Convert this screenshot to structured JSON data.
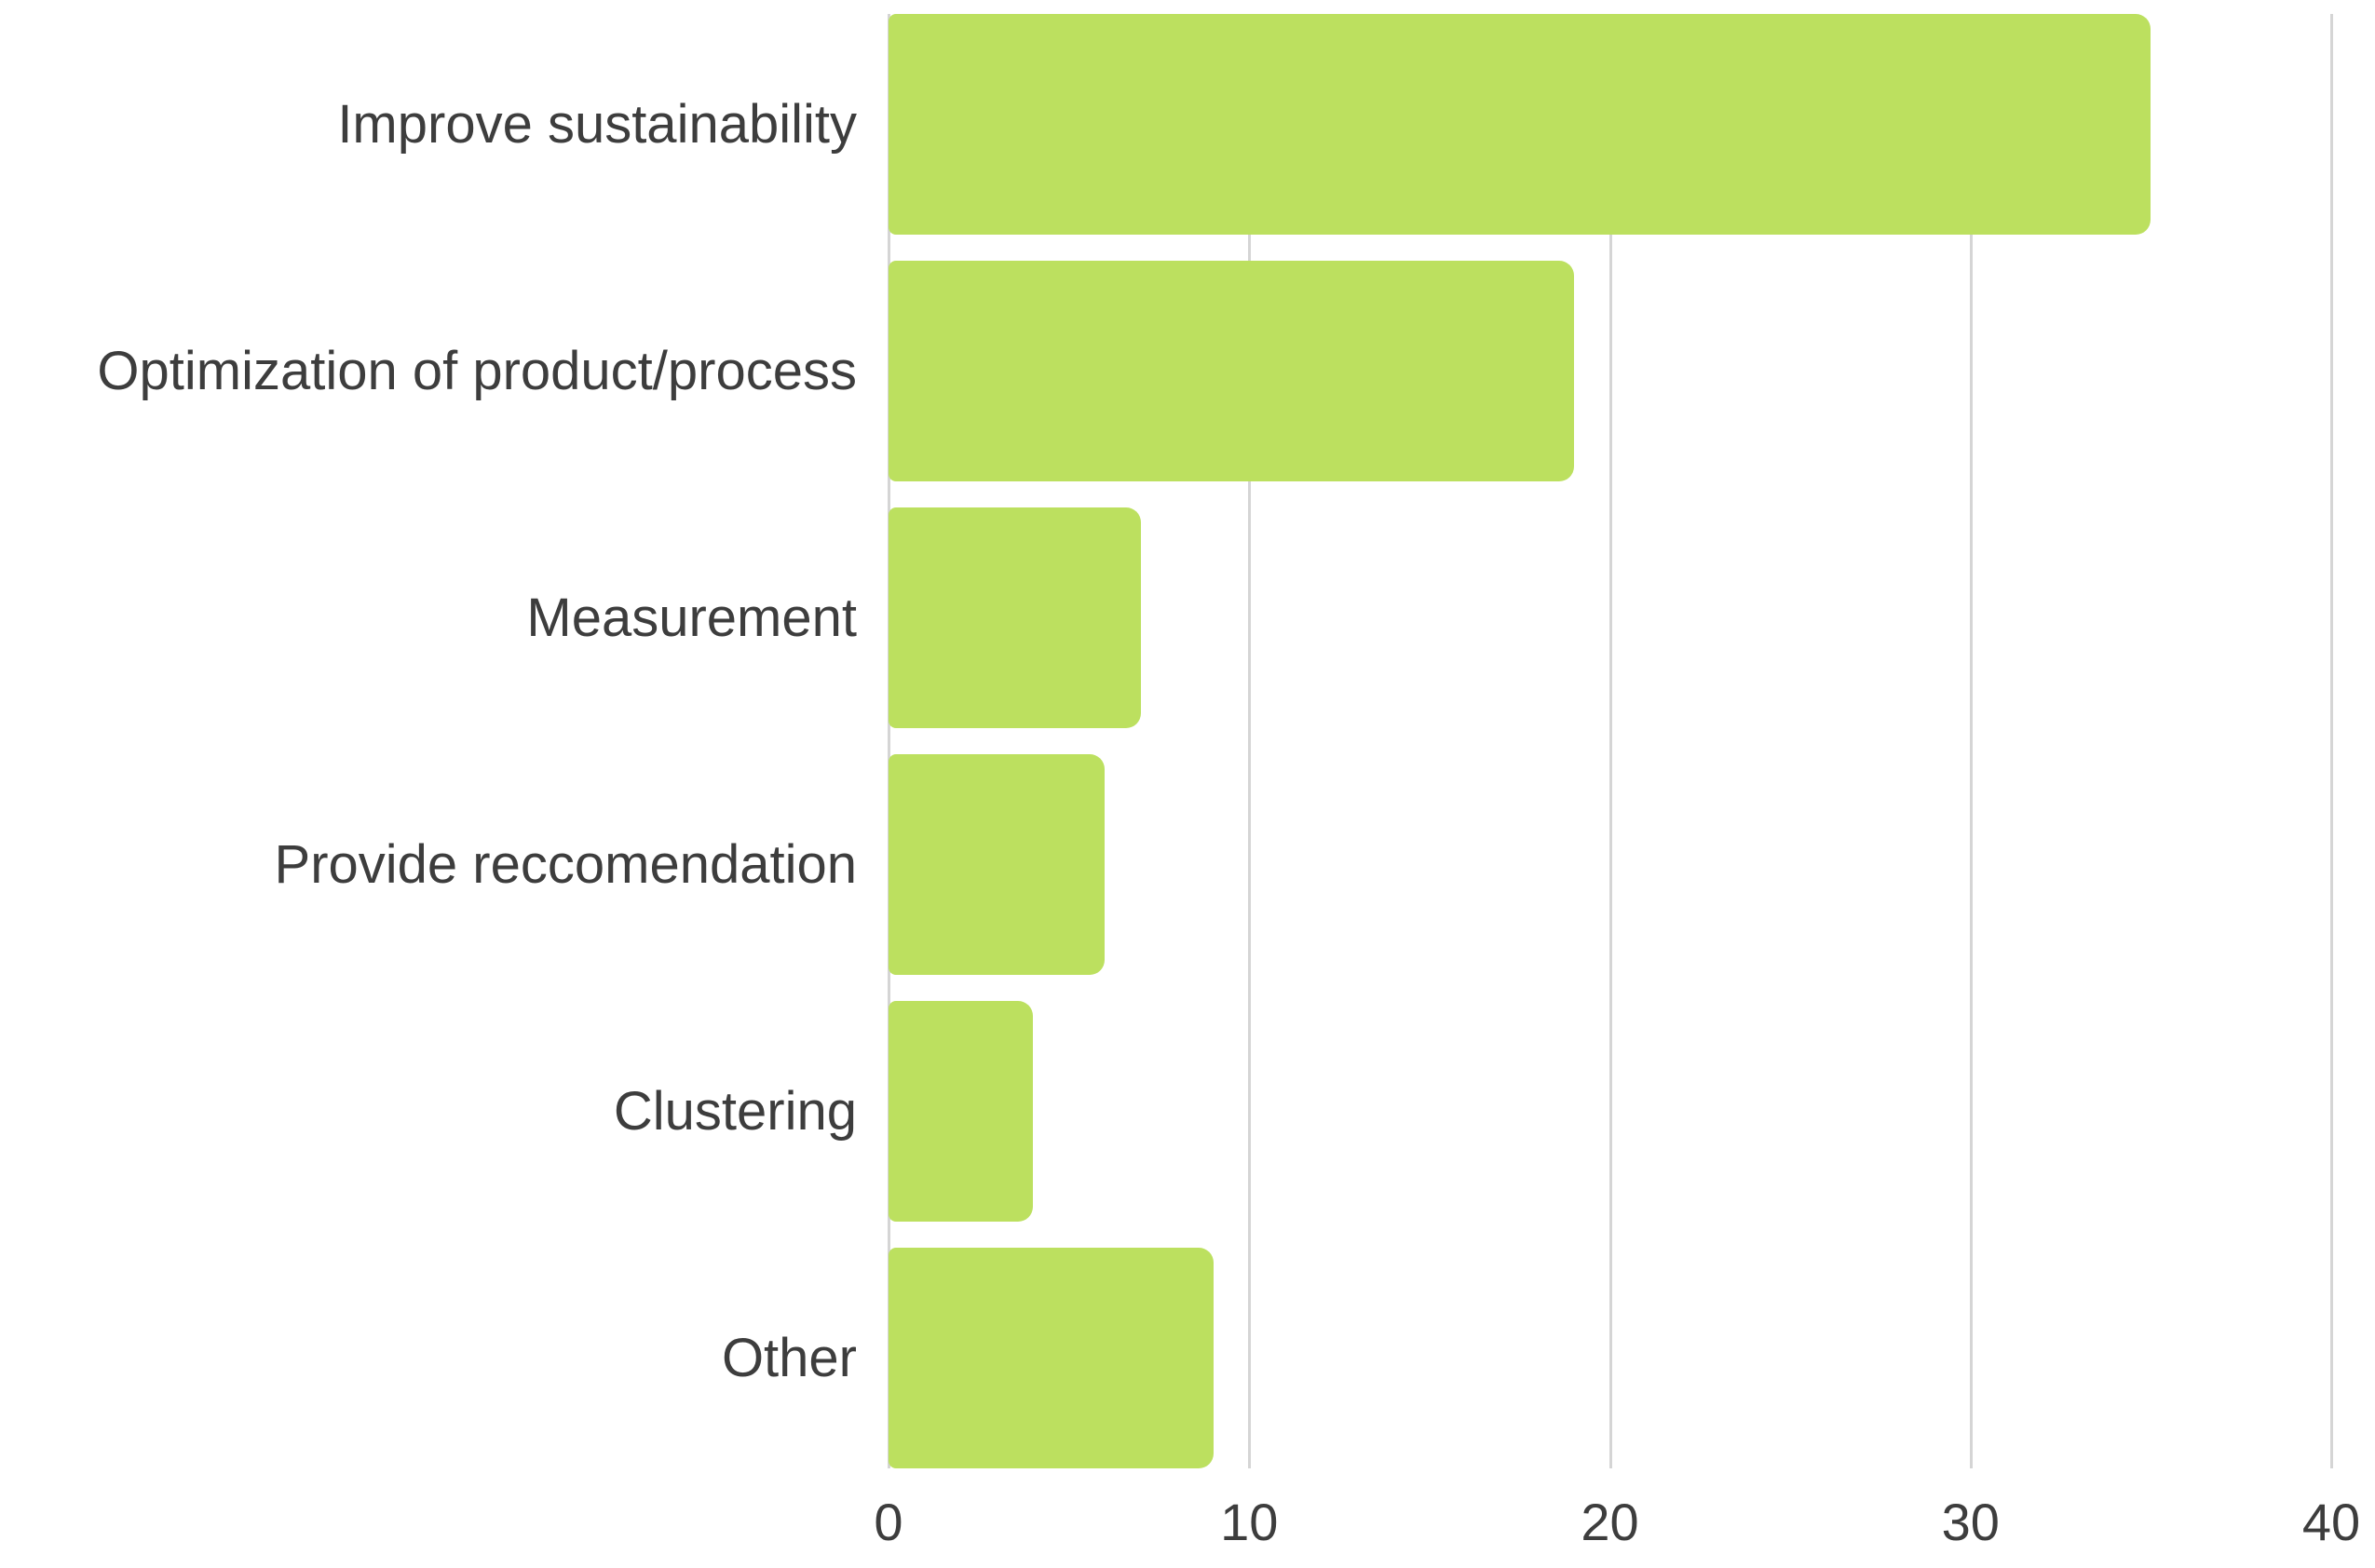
{
  "chart_data": {
    "type": "bar",
    "orientation": "horizontal",
    "title": "",
    "xlabel": "",
    "ylabel": "",
    "categories": [
      "Improve sustainability",
      "Optimization of product/process",
      "Measurement",
      "Provide reccomendation",
      "Clustering",
      "Other"
    ],
    "values": [
      35,
      19,
      7,
      6,
      4,
      9
    ],
    "xlim": [
      0,
      40
    ],
    "xticks": [
      0,
      10,
      20,
      30,
      40
    ],
    "grid": "vertical-gridlines-on",
    "legend": "none",
    "colors": {
      "bar": "#bce05f",
      "gridline": "#d5d5d5",
      "text": "#3d3d3d",
      "background": "#ffffff"
    }
  }
}
